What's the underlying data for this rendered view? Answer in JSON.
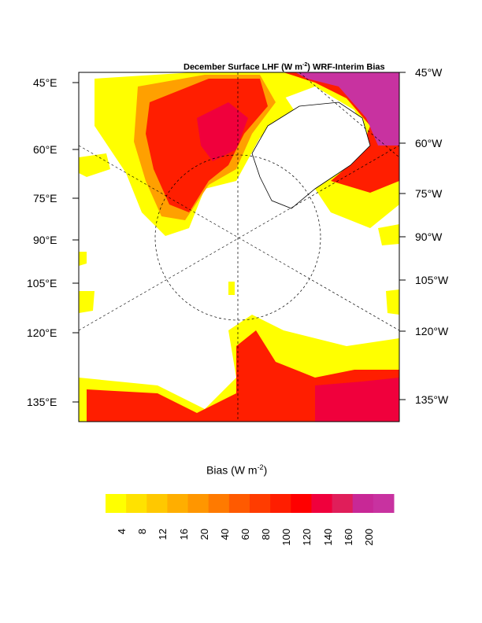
{
  "title": {
    "prefix": "December Surface LHF (W m",
    "exp": "-2",
    "suffix": ") WRF-Interim Bias"
  },
  "lat_labels_left": [
    "45°E",
    "60°E",
    "75°E",
    "90°E",
    "105°E",
    "120°E",
    "135°E"
  ],
  "lat_labels_right": [
    "45°W",
    "60°W",
    "75°W",
    "90°W",
    "105°W",
    "120°W",
    "135°W"
  ],
  "colorbar": {
    "title_prefix": "Bias (W m",
    "title_exp": "-2",
    "title_suffix": ")",
    "ticks": [
      "4",
      "8",
      "12",
      "16",
      "20",
      "40",
      "60",
      "80",
      "100",
      "120",
      "140",
      "160",
      "200"
    ],
    "colors": [
      "#FFFF00",
      "#FFE200",
      "#FFC800",
      "#FFAE00",
      "#FF9600",
      "#FF7A00",
      "#FF5A00",
      "#FF3C00",
      "#FF1E00",
      "#FF0000",
      "#F0003C",
      "#E01E5A",
      "#C82896",
      "#C832A0"
    ]
  }
}
